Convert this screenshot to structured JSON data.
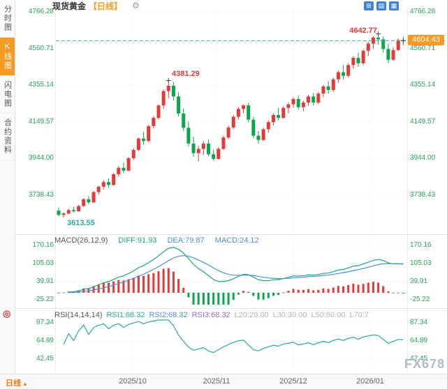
{
  "header": {
    "title": "现货黄金",
    "period_tag": "【日线】"
  },
  "sidebar": {
    "tabs": [
      {
        "label": "分时图",
        "active": false
      },
      {
        "label": "K线图",
        "active": true
      },
      {
        "label": "闪电图",
        "active": false
      },
      {
        "label": "合约资料",
        "active": false
      }
    ]
  },
  "bottom": {
    "period_label": "日线",
    "x_labels": [
      "2025/10",
      "2025/11",
      "2025/12",
      "2026/01"
    ],
    "watermark": "FX678"
  },
  "colors": {
    "up": "#e23b3b",
    "down": "#0da550",
    "diff_line": "#1ba784",
    "dea_line": "#4a90d9",
    "rsi3_line": "#9a6bce",
    "rsi_line": "#2ba8a0",
    "dashed_line": "#35aec0",
    "axis_tick": "#2aa05a",
    "accent": "#f59a23",
    "grid": "#e5e5e5"
  },
  "chart_data": [
    {
      "type": "candlestick",
      "title": "现货黄金 日线",
      "y_ticks": [
        4766.28,
        4560.71,
        4355.14,
        4149.57,
        3944.0,
        3738.43
      ],
      "x_labels": [
        "2025/10",
        "2025/11",
        "2025/12",
        "2026/01"
      ],
      "current_price": "4604.43",
      "annotations": {
        "peak_high": "4642.77",
        "local_high": "4381.29",
        "start_low": "3613.55"
      },
      "candles_ohlc": [
        [
          3652,
          3668,
          3620,
          3628
        ],
        [
          3628,
          3642,
          3613.55,
          3636
        ],
        [
          3636,
          3662,
          3630,
          3655
        ],
        [
          3655,
          3672,
          3641,
          3648
        ],
        [
          3648,
          3684,
          3645,
          3678
        ],
        [
          3678,
          3722,
          3672,
          3716
        ],
        [
          3716,
          3732,
          3688,
          3698
        ],
        [
          3698,
          3762,
          3696,
          3756
        ],
        [
          3756,
          3792,
          3742,
          3786
        ],
        [
          3786,
          3822,
          3772,
          3812
        ],
        [
          3812,
          3832,
          3780,
          3796
        ],
        [
          3796,
          3862,
          3792,
          3856
        ],
        [
          3856,
          3902,
          3842,
          3892
        ],
        [
          3892,
          3922,
          3862,
          3876
        ],
        [
          3876,
          3952,
          3872,
          3946
        ],
        [
          3946,
          4002,
          3936,
          3992
        ],
        [
          3992,
          4062,
          3986,
          4056
        ],
        [
          4056,
          4092,
          4022,
          4042
        ],
        [
          4042,
          4132,
          4036,
          4126
        ],
        [
          4126,
          4182,
          4112,
          4172
        ],
        [
          4172,
          4248,
          4162,
          4242
        ],
        [
          4242,
          4332,
          4222,
          4322
        ],
        [
          4322,
          4381.29,
          4282,
          4352
        ],
        [
          4352,
          4372,
          4270,
          4292
        ],
        [
          4292,
          4316,
          4180,
          4196
        ],
        [
          4196,
          4224,
          4098,
          4116
        ],
        [
          4116,
          4152,
          4012,
          4028
        ],
        [
          4028,
          4066,
          3954,
          3974
        ],
        [
          3974,
          4014,
          3929,
          3998
        ],
        [
          3998,
          4042,
          3964,
          4028
        ],
        [
          4028,
          4052,
          3958,
          3968
        ],
        [
          3968,
          3994,
          3932,
          3942
        ],
        [
          3942,
          4008,
          3938,
          3998
        ],
        [
          3998,
          4072,
          3992,
          4062
        ],
        [
          4062,
          4128,
          4052,
          4118
        ],
        [
          4118,
          4188,
          4108,
          4178
        ],
        [
          4178,
          4232,
          4162,
          4222
        ],
        [
          4222,
          4248,
          4198,
          4242
        ],
        [
          4242,
          4256,
          4148,
          4162
        ],
        [
          4162,
          4178,
          4058,
          4072
        ],
        [
          4072,
          4098,
          4028,
          4048
        ],
        [
          4048,
          4118,
          4042,
          4108
        ],
        [
          4108,
          4158,
          4088,
          4148
        ],
        [
          4148,
          4198,
          4128,
          4188
        ],
        [
          4188,
          4228,
          4158,
          4172
        ],
        [
          4172,
          4238,
          4168,
          4228
        ],
        [
          4228,
          4258,
          4198,
          4248
        ],
        [
          4248,
          4288,
          4228,
          4278
        ],
        [
          4278,
          4298,
          4218,
          4232
        ],
        [
          4232,
          4268,
          4208,
          4258
        ],
        [
          4258,
          4302,
          4238,
          4292
        ],
        [
          4292,
          4312,
          4242,
          4258
        ],
        [
          4258,
          4318,
          4248,
          4308
        ],
        [
          4308,
          4358,
          4288,
          4348
        ],
        [
          4348,
          4378,
          4308,
          4328
        ],
        [
          4328,
          4398,
          4318,
          4388
        ],
        [
          4388,
          4438,
          4368,
          4428
        ],
        [
          4428,
          4468,
          4388,
          4408
        ],
        [
          4408,
          4478,
          4398,
          4468
        ],
        [
          4468,
          4518,
          4448,
          4508
        ],
        [
          4508,
          4538,
          4458,
          4478
        ],
        [
          4478,
          4558,
          4468,
          4548
        ],
        [
          4548,
          4598,
          4518,
          4588
        ],
        [
          4588,
          4630,
          4558,
          4622
        ],
        [
          4622,
          4642.77,
          4582,
          4612
        ],
        [
          4612,
          4628,
          4538,
          4558
        ],
        [
          4558,
          4588,
          4478,
          4498
        ],
        [
          4498,
          4568,
          4492,
          4552
        ],
        [
          4552,
          4618,
          4546,
          4608
        ],
        [
          4608,
          4626,
          4578,
          4604.43
        ]
      ]
    },
    {
      "type": "macd",
      "label": "MACD(26,12,9)",
      "diff_label": "DIFF:91.93",
      "dea_label": "DEA:79.87",
      "macd_label": "MACD:24.12",
      "diff": 91.93,
      "dea": 79.87,
      "macd": 24.12,
      "y_ticks": [
        170.16,
        105.03,
        39.91,
        -25.22
      ]
    },
    {
      "type": "rsi",
      "label": "RSI(14,14,14)",
      "rsi1_label": "RSI1:68.32",
      "rsi2_label": "RSI2:68.32",
      "rsi3_label": "RSI3:68.32",
      "l20_label": "L20:20.00",
      "l30_label": "L30:30.00",
      "l50_label": "L50:50.00",
      "l70_label": "L70:7",
      "y_ticks": [
        87.34,
        64.89,
        42.45
      ]
    }
  ]
}
